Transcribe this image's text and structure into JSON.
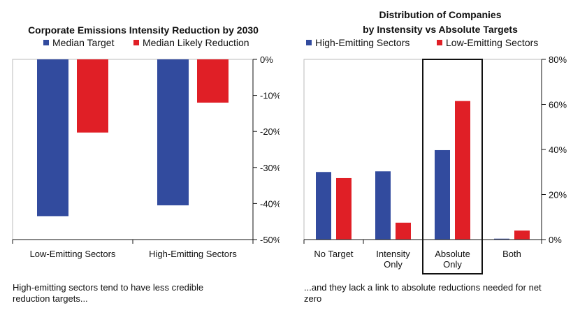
{
  "colors": {
    "high": "#324b9e",
    "low": "#e01f26",
    "axis": "#111111",
    "grid": "#bbbbbb",
    "frame": "#111111"
  },
  "chart_data": [
    {
      "type": "bar",
      "title": "Corporate Emissions Intensity Reduction by 2030",
      "legend_position": "top",
      "categories": [
        "Low-Emitting Sectors",
        "High-Emitting Sectors"
      ],
      "series": [
        {
          "name": "Median Target",
          "color_key": "high",
          "values": [
            -43.5,
            -40.5
          ]
        },
        {
          "name": "Median Likely Reduction",
          "color_key": "low",
          "values": [
            -20.3,
            -12
          ]
        }
      ],
      "y_ticks": [
        "0%",
        "-10%",
        "-20%",
        "-30%",
        "-40%",
        "-50%"
      ],
      "ylim": [
        -50,
        0
      ],
      "xlabel": "",
      "ylabel": ""
    },
    {
      "type": "bar",
      "title_lines": [
        "Distribution of Companies",
        "by Instensity vs Absolute Targets"
      ],
      "legend_position": "top",
      "categories": [
        [
          "No Target"
        ],
        [
          "Intensity",
          "Only"
        ],
        [
          "Absolute",
          "Only"
        ],
        [
          "Both"
        ]
      ],
      "series": [
        {
          "name": "High-Emitting Sectors",
          "color_key": "high",
          "values": [
            30,
            30.3,
            39.7,
            0.4
          ]
        },
        {
          "name": "Low-Emitting Sectors",
          "color_key": "low",
          "values": [
            27.3,
            7.5,
            61.5,
            4
          ]
        }
      ],
      "y_ticks": [
        "0%",
        "20%",
        "40%",
        "60%",
        "80%"
      ],
      "ylim": [
        0,
        80
      ],
      "highlighted_category": "Absolute Only",
      "xlabel": "",
      "ylabel": ""
    }
  ],
  "captions": {
    "left": "High-emitting sectors tend to have less credible reduction targets...",
    "right": "...and they lack a link to absolute reductions needed for net zero"
  }
}
